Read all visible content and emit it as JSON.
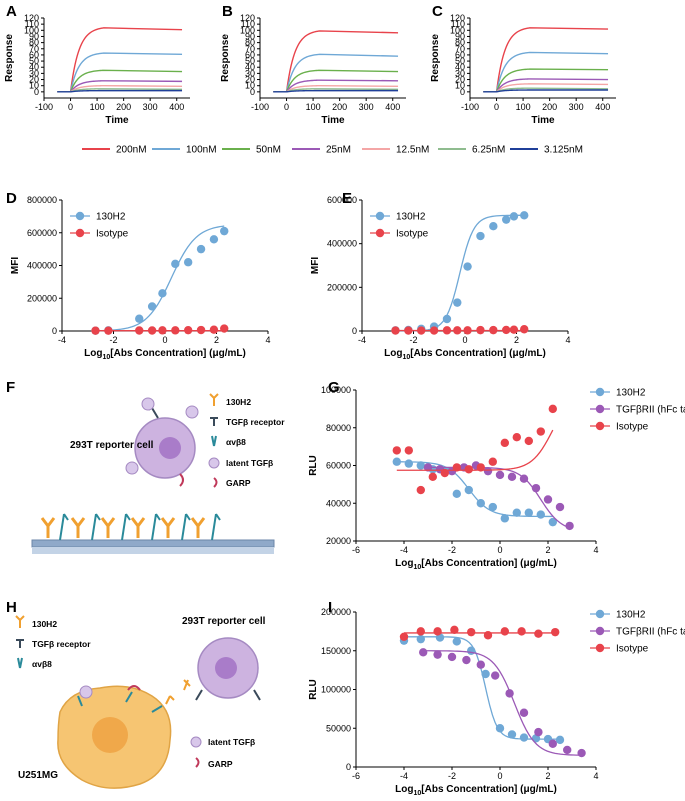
{
  "panels": {
    "A": "A",
    "B": "B",
    "C": "C",
    "D": "D",
    "E": "E",
    "F": "F",
    "G": "G",
    "H": "H",
    "I": "I"
  },
  "spr_legend": [
    {
      "label": "200nM",
      "color": "#e8434b"
    },
    {
      "label": "100nM",
      "color": "#6fa8d6"
    },
    {
      "label": "50nM",
      "color": "#6ab04c"
    },
    {
      "label": "25nM",
      "color": "#9b59b6"
    },
    {
      "label": "12.5nM",
      "color": "#f4a6a6"
    },
    {
      "label": "6.25nM",
      "color": "#8fbc8f"
    },
    {
      "label": "3.125nM",
      "color": "#1f3f99"
    }
  ],
  "schematic_F": {
    "cell_label": "293T reporter cell",
    "legend": [
      "130H2",
      "TGFβ receptor",
      "αvβ8",
      "latent TGFβ",
      "GARP"
    ]
  },
  "schematic_H": {
    "reporter_label": "293T reporter cell",
    "tumor_label": "U251MG",
    "legend_top": [
      "130H2",
      "TGFβ receptor",
      "αvβ8"
    ],
    "legend_bottom": [
      "latent TGFβ",
      "GARP"
    ]
  },
  "chart_data": [
    {
      "id": "A",
      "type": "line",
      "title": "",
      "xlabel": "Time",
      "ylabel": "Response",
      "xlim": [
        -100,
        450
      ],
      "ylim": [
        -10,
        120
      ],
      "xticks": [
        "-100",
        "0",
        "100",
        "200",
        "300",
        "400"
      ],
      "yticks": [
        "0",
        "10",
        "20",
        "30",
        "40",
        "50",
        "60",
        "70",
        "80",
        "90",
        "100",
        "110",
        "120"
      ],
      "association_start": 0,
      "association_end": 125,
      "end_time": 420,
      "series": [
        {
          "name": "200nM",
          "plateau": 104,
          "end": 101
        },
        {
          "name": "100nM",
          "plateau": 63,
          "end": 61
        },
        {
          "name": "50nM",
          "plateau": 35,
          "end": 33
        },
        {
          "name": "25nM",
          "plateau": 18,
          "end": 17
        },
        {
          "name": "12.5nM",
          "plateau": 10,
          "end": 9
        },
        {
          "name": "6.25nM",
          "plateau": 5,
          "end": 4
        },
        {
          "name": "3.125nM",
          "plateau": 2,
          "end": 2
        }
      ]
    },
    {
      "id": "B",
      "type": "line",
      "title": "",
      "xlabel": "Time",
      "ylabel": "Response",
      "xlim": [
        -100,
        450
      ],
      "ylim": [
        -10,
        120
      ],
      "xticks": [
        "-100",
        "0",
        "100",
        "200",
        "300",
        "400"
      ],
      "yticks": [
        "0",
        "10",
        "20",
        "30",
        "40",
        "50",
        "60",
        "70",
        "80",
        "90",
        "100",
        "110",
        "120"
      ],
      "association_start": 0,
      "association_end": 125,
      "end_time": 420,
      "series": [
        {
          "name": "200nM",
          "plateau": 99,
          "end": 96
        },
        {
          "name": "100nM",
          "plateau": 61,
          "end": 58
        },
        {
          "name": "50nM",
          "plateau": 35,
          "end": 33
        },
        {
          "name": "25nM",
          "plateau": 19,
          "end": 18
        },
        {
          "name": "12.5nM",
          "plateau": 10,
          "end": 9
        },
        {
          "name": "6.25nM",
          "plateau": 5,
          "end": 4
        },
        {
          "name": "3.125nM",
          "plateau": 2,
          "end": 2
        }
      ]
    },
    {
      "id": "C",
      "type": "line",
      "title": "",
      "xlabel": "Time",
      "ylabel": "Response",
      "xlim": [
        -100,
        450
      ],
      "ylim": [
        -10,
        120
      ],
      "xticks": [
        "-100",
        "0",
        "100",
        "200",
        "300",
        "400"
      ],
      "yticks": [
        "0",
        "10",
        "20",
        "30",
        "40",
        "50",
        "60",
        "70",
        "80",
        "90",
        "100",
        "110",
        "120"
      ],
      "association_start": 0,
      "association_end": 125,
      "end_time": 420,
      "series": [
        {
          "name": "200nM",
          "plateau": 104,
          "end": 102
        },
        {
          "name": "100nM",
          "plateau": 64,
          "end": 62
        },
        {
          "name": "50nM",
          "plateau": 37,
          "end": 36
        },
        {
          "name": "25nM",
          "plateau": 21,
          "end": 20
        },
        {
          "name": "12.5nM",
          "plateau": 13,
          "end": 12
        },
        {
          "name": "6.25nM",
          "plateau": 6,
          "end": 5
        },
        {
          "name": "3.125nM",
          "plateau": 3,
          "end": 3
        }
      ]
    },
    {
      "id": "D",
      "type": "scatter",
      "title": "",
      "xlabel": "Log10[Abs Concentration] (μg/mL)",
      "ylabel": "MFI",
      "xlim": [
        -4,
        4
      ],
      "ylim": [
        0,
        800000
      ],
      "xticks": [
        "-4",
        "-2",
        "0",
        "2",
        "4"
      ],
      "yticks": [
        "0",
        "200000",
        "400000",
        "600000",
        "800000"
      ],
      "legend": [
        "130H2",
        "Isotype"
      ],
      "series": [
        {
          "name": "130H2",
          "color": "#6fa8d6",
          "x": [
            -2.7,
            -2.2,
            -1.0,
            -0.5,
            -0.1,
            0.4,
            0.9,
            1.4,
            1.9,
            2.3
          ],
          "y": [
            2000,
            4000,
            75000,
            150000,
            230000,
            410000,
            420000,
            500000,
            560000,
            610000
          ],
          "fit": {
            "bottom": 0,
            "top": 650000,
            "ec50": 0.25,
            "hill": 0.9
          }
        },
        {
          "name": "Isotype",
          "color": "#e8434b",
          "x": [
            -2.7,
            -2.2,
            -1.0,
            -0.5,
            -0.1,
            0.4,
            0.9,
            1.4,
            1.9,
            2.3
          ],
          "y": [
            2000,
            2000,
            3000,
            3000,
            4000,
            4000,
            5000,
            6000,
            8000,
            15000
          ],
          "fit": {
            "bottom": 2000,
            "top": 2000,
            "ec50": 0,
            "hill": 1
          }
        }
      ]
    },
    {
      "id": "E",
      "type": "scatter",
      "title": "",
      "xlabel": "Log10[Abs Concentration] (μg/mL)",
      "ylabel": "MFI",
      "xlim": [
        -4,
        4
      ],
      "ylim": [
        0,
        600000
      ],
      "xticks": [
        "-4",
        "-2",
        "0",
        "2",
        "4"
      ],
      "yticks": [
        "0",
        "200000",
        "400000",
        "600000"
      ],
      "legend": [
        "130H2",
        "Isotype"
      ],
      "series": [
        {
          "name": "130H2",
          "color": "#6fa8d6",
          "x": [
            -2.7,
            -2.2,
            -1.7,
            -1.2,
            -0.7,
            -0.3,
            0.1,
            0.6,
            1.1,
            1.6,
            1.9,
            2.3
          ],
          "y": [
            3000,
            5000,
            10000,
            20000,
            55000,
            130000,
            295000,
            435000,
            480000,
            510000,
            525000,
            530000
          ],
          "fit": {
            "bottom": 0,
            "top": 530000,
            "ec50": -0.2,
            "hill": 1.6
          }
        },
        {
          "name": "Isotype",
          "color": "#e8434b",
          "x": [
            -2.7,
            -2.2,
            -1.7,
            -1.2,
            -0.7,
            -0.3,
            0.1,
            0.6,
            1.1,
            1.6,
            1.9,
            2.3
          ],
          "y": [
            2000,
            2000,
            2000,
            2000,
            3000,
            3000,
            3000,
            4000,
            4000,
            5000,
            6000,
            8000
          ],
          "fit": {
            "bottom": 2000,
            "top": 2000,
            "ec50": 0,
            "hill": 1
          }
        }
      ]
    },
    {
      "id": "G",
      "type": "scatter",
      "title": "",
      "xlabel": "Log10[Abs Concentration] (μg/mL)",
      "ylabel": "RLU",
      "xlim": [
        -6,
        4
      ],
      "ylim": [
        20000,
        100000
      ],
      "xticks": [
        "-6",
        "-4",
        "-2",
        "0",
        "2",
        "4"
      ],
      "yticks": [
        "20000",
        "40000",
        "60000",
        "80000",
        "100000"
      ],
      "legend": [
        "130H2",
        "TGFβRII (hFc tag)",
        "Isotype"
      ],
      "series": [
        {
          "name": "130H2",
          "color": "#6fa8d6",
          "x": [
            -4.3,
            -3.8,
            -3.3,
            -2.8,
            -2.3,
            -1.8,
            -1.3,
            -0.8,
            -0.3,
            0.2,
            0.7,
            1.2,
            1.7,
            2.2
          ],
          "y": [
            62000,
            61000,
            60000,
            58000,
            57000,
            45000,
            47000,
            40000,
            38000,
            32000,
            35000,
            35000,
            34000,
            30000
          ],
          "fit": {
            "bottom": 33000,
            "top": 62000,
            "ec50": -1.3,
            "hill": -1.0
          }
        },
        {
          "name": "TGFβRII (hFc tag)",
          "color": "#9b59b6",
          "x": [
            -3.0,
            -2.5,
            -2.0,
            -1.5,
            -1.0,
            -0.5,
            0.0,
            0.5,
            1.0,
            1.5,
            2.0,
            2.5,
            2.9
          ],
          "y": [
            59000,
            58000,
            57000,
            59000,
            60000,
            57000,
            55000,
            54000,
            53000,
            48000,
            42000,
            38000,
            28000
          ],
          "fit": {
            "bottom": 25000,
            "top": 59000,
            "ec50": 1.7,
            "hill": -1.0
          }
        },
        {
          "name": "Isotype",
          "color": "#e8434b",
          "x": [
            -4.3,
            -3.8,
            -3.3,
            -2.8,
            -2.3,
            -1.8,
            -1.3,
            -0.8,
            -0.3,
            0.2,
            0.7,
            1.2,
            1.7,
            2.2
          ],
          "y": [
            68000,
            68000,
            47000,
            54000,
            56000,
            59000,
            58000,
            59000,
            62000,
            72000,
            75000,
            73000,
            78000,
            90000
          ],
          "fit": {
            "bottom": 57500,
            "top": 100000,
            "ec50": 2.2,
            "hill": 1.0
          }
        }
      ]
    },
    {
      "id": "I",
      "type": "scatter",
      "title": "",
      "xlabel": "Log10[Abs Concentration] (μg/mL)",
      "ylabel": "RLU",
      "xlim": [
        -6,
        4
      ],
      "ylim": [
        0,
        200000
      ],
      "xticks": [
        "-6",
        "-4",
        "-2",
        "0",
        "2",
        "4"
      ],
      "yticks": [
        "0",
        "50000",
        "100000",
        "150000",
        "200000"
      ],
      "legend": [
        "130H2",
        "TGFβRII (hFc tag)",
        "Isotype"
      ],
      "series": [
        {
          "name": "130H2",
          "color": "#6fa8d6",
          "x": [
            -4.0,
            -3.3,
            -2.5,
            -1.8,
            -1.2,
            -0.6,
            0.0,
            0.5,
            1.0,
            1.5,
            2.0,
            2.5
          ],
          "y": [
            163000,
            165000,
            167000,
            162000,
            150000,
            120000,
            50000,
            42000,
            38000,
            37000,
            36000,
            35000
          ],
          "fit": {
            "bottom": 36000,
            "top": 168000,
            "ec50": -0.6,
            "hill": -1.8
          }
        },
        {
          "name": "TGFβRII (hFc tag)",
          "color": "#9b59b6",
          "x": [
            -3.2,
            -2.6,
            -2.0,
            -1.4,
            -0.8,
            -0.2,
            0.4,
            1.0,
            1.6,
            2.2,
            2.8,
            3.4
          ],
          "y": [
            148000,
            145000,
            142000,
            138000,
            132000,
            118000,
            95000,
            70000,
            45000,
            30000,
            22000,
            18000
          ],
          "fit": {
            "bottom": 15000,
            "top": 150000,
            "ec50": 0.6,
            "hill": -1.0
          }
        },
        {
          "name": "Isotype",
          "color": "#e8434b",
          "x": [
            -4.0,
            -3.3,
            -2.6,
            -1.9,
            -1.2,
            -0.5,
            0.2,
            0.9,
            1.6,
            2.3
          ],
          "y": [
            168000,
            175000,
            175000,
            177000,
            174000,
            170000,
            175000,
            175000,
            172000,
            174000
          ],
          "fit": {
            "bottom": 173000,
            "top": 173000,
            "ec50": 0,
            "hill": 1
          }
        }
      ]
    }
  ]
}
